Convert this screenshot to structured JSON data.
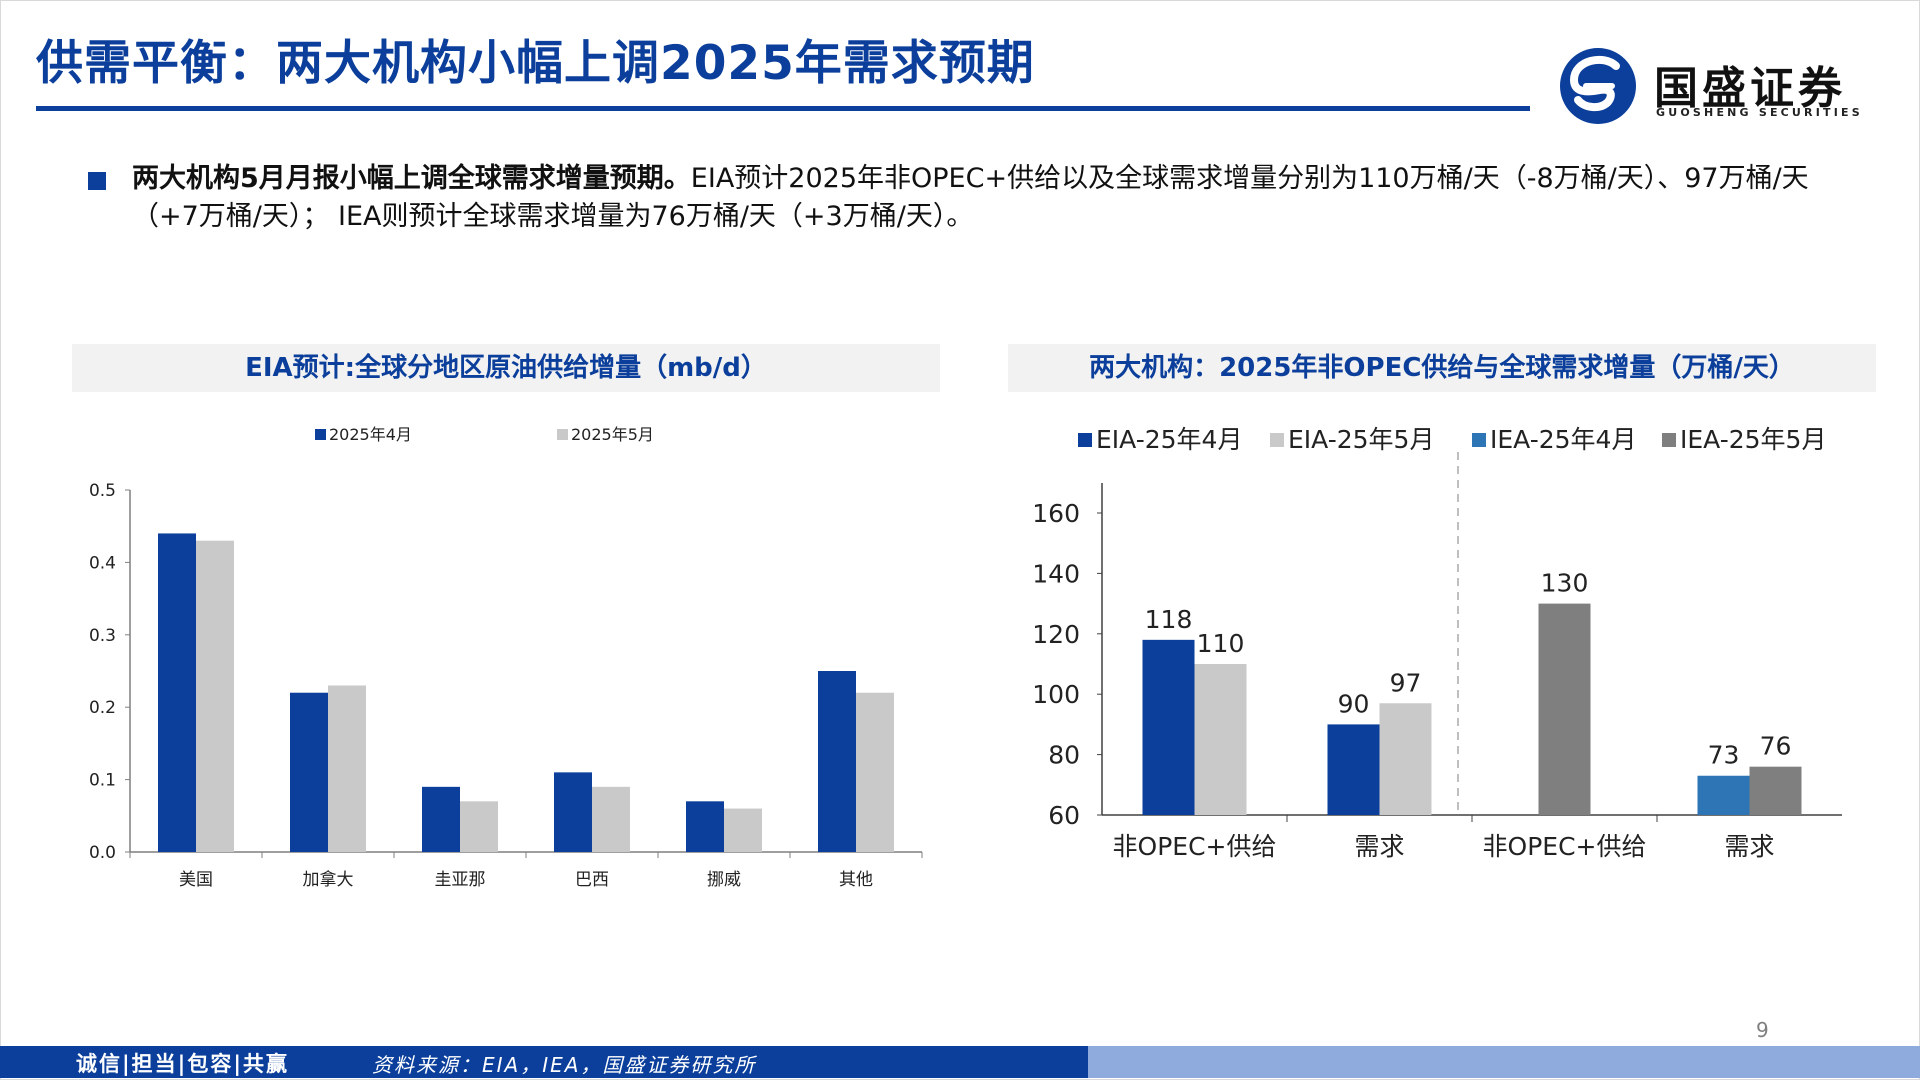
{
  "header": {
    "title": "供需平衡：两大机构小幅上调2025年需求预期",
    "logo_text": "国盛证券",
    "logo_subtext": "GUOSHENG SECURITIES"
  },
  "bullet": {
    "bold": "两大机构5月月报小幅上调全球需求增量预期。",
    "text": "EIA预计2025年非OPEC+供给以及全球需求增量分别为110万桶/天（-8万桶/天）、97万桶/天（+7万桶/天）； IEA则预计全球需求增量为76万桶/天（+3万桶/天）。"
  },
  "colors": {
    "brand": "#0b3f9b",
    "gray_light": "#c9c9c9",
    "blue_light": "#2e75b6",
    "gray_dark": "#7f7f7f"
  },
  "chart_data": [
    {
      "type": "bar",
      "title": "EIA预计:全球分地区原油供给增量（mb/d）",
      "categories": [
        "美国",
        "加拿大",
        "圭亚那",
        "巴西",
        "挪威",
        "其他"
      ],
      "series": [
        {
          "name": "2025年4月",
          "values": [
            0.44,
            0.22,
            0.09,
            0.11,
            0.07,
            0.25
          ]
        },
        {
          "name": "2025年5月",
          "values": [
            0.43,
            0.23,
            0.07,
            0.09,
            0.06,
            0.22
          ]
        }
      ],
      "ylim": [
        0,
        0.5
      ],
      "yticks": [
        "0.0",
        "0.1",
        "0.2",
        "0.3",
        "0.4",
        "0.5"
      ],
      "legend": "top"
    },
    {
      "type": "bar",
      "title": "两大机构：2025年非OPEC供给与全球需求增量（万桶/天）",
      "categories": [
        "非OPEC+供给",
        "需求",
        "非OPEC+供给",
        "需求"
      ],
      "series": [
        {
          "name": "EIA-25年4月",
          "values": [
            118,
            90,
            null,
            null
          ]
        },
        {
          "name": "EIA-25年5月",
          "values": [
            110,
            97,
            null,
            null
          ]
        },
        {
          "name": "IEA-25年4月",
          "values": [
            null,
            null,
            null,
            73
          ]
        },
        {
          "name": "IEA-25年5月",
          "values": [
            null,
            null,
            130,
            76
          ]
        }
      ],
      "ylim": [
        60,
        160
      ],
      "yticks": [
        "60",
        "80",
        "100",
        "120",
        "140",
        "160"
      ],
      "legend": "top",
      "data_labels": true
    }
  ],
  "footer": {
    "motto": "诚信|担当|包容|共赢",
    "source": "资料来源：EIA，IEA，国盛证券研究所",
    "page": "9"
  }
}
